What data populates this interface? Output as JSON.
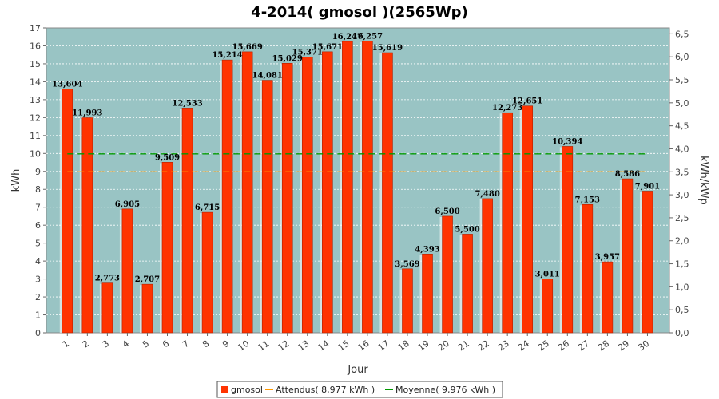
{
  "chart_data": {
    "type": "bar",
    "title": "4-2014( gmosol )(2565Wp)",
    "xlabel": "Jour",
    "ylabel": "kWh",
    "ylabel_right": "kWh/kWp",
    "ylim": [
      0,
      17
    ],
    "ylim_right": [
      0,
      6.628
    ],
    "yticks": [
      0,
      1,
      2,
      3,
      4,
      5,
      6,
      7,
      8,
      9,
      10,
      11,
      12,
      13,
      14,
      15,
      16,
      17
    ],
    "yticks_right": [
      "0,0",
      "0,5",
      "1,0",
      "1,5",
      "2,0",
      "2,5",
      "3,0",
      "3,5",
      "4,0",
      "4,5",
      "5,0",
      "5,5",
      "6,0",
      "6,5"
    ],
    "categories": [
      "1",
      "2",
      "3",
      "4",
      "5",
      "6",
      "7",
      "8",
      "9",
      "10",
      "11",
      "12",
      "13",
      "14",
      "15",
      "16",
      "17",
      "18",
      "19",
      "20",
      "21",
      "22",
      "23",
      "24",
      "25",
      "26",
      "27",
      "28",
      "29",
      "30"
    ],
    "series": [
      {
        "name": "gmosol",
        "values": [
          13.604,
          11.993,
          2.773,
          6.905,
          2.707,
          9.509,
          12.533,
          6.715,
          15.214,
          15.669,
          14.081,
          15.029,
          15.371,
          15.671,
          16.247,
          16.257,
          15.619,
          3.569,
          4.393,
          6.5,
          5.5,
          7.48,
          12.273,
          12.651,
          3.011,
          10.394,
          7.153,
          3.957,
          8.586,
          7.901
        ],
        "labels": [
          "13,604",
          "11,993",
          "2,773",
          "6,905",
          "2,707",
          "9,509",
          "12,533",
          "6,715",
          "15,214",
          "15,669",
          "14,081",
          "15,029",
          "15,371",
          "15,671",
          "16,247",
          "16,257",
          "15,619",
          "3,569",
          "4,393",
          "6,500",
          "5,500",
          "7,480",
          "12,273",
          "12,651",
          "3,011",
          "10,394",
          "7,153",
          "3,957",
          "8,586",
          "7,901"
        ],
        "color": "#ff3300"
      }
    ],
    "reference_lines": [
      {
        "name": "Attendus( 8,977 kWh )",
        "value": 8.977,
        "color": "#ff9900"
      },
      {
        "name": "Moyenne( 9,976 kWh )",
        "value": 9.976,
        "color": "#009900"
      }
    ],
    "grid": true,
    "legend_position": "bottom",
    "plot_background": "#99c4c4"
  }
}
